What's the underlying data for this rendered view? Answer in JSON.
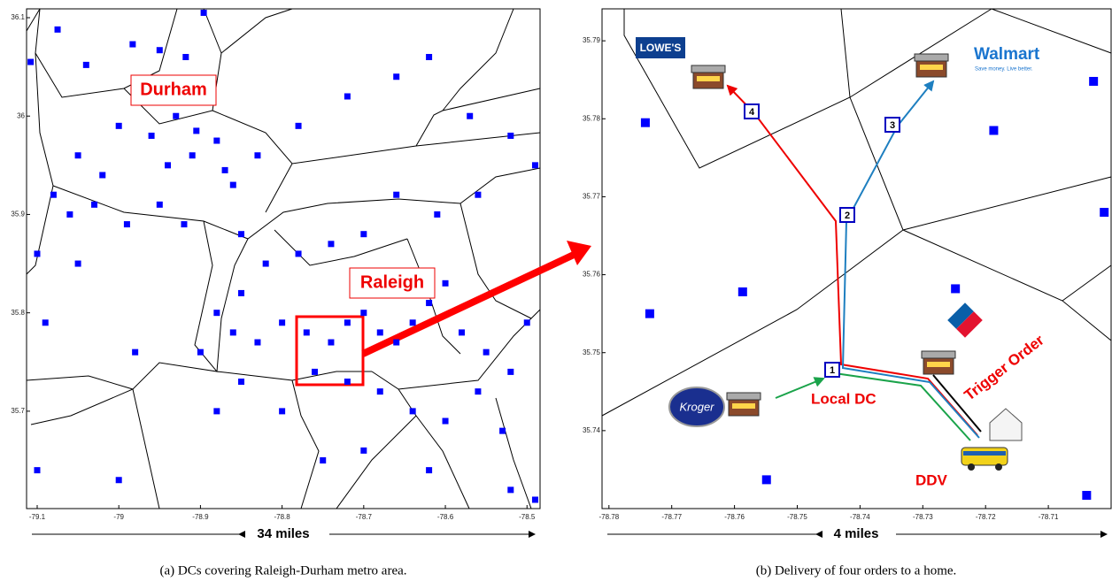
{
  "panels": [
    {
      "type": "scatter",
      "color": "#0000ff",
      "xlim": [
        -79.113,
        -78.484
      ],
      "ylim": [
        35.601,
        36.109
      ],
      "xticks": [
        -79.1,
        -79,
        -78.9,
        -78.8,
        -78.7,
        -78.6,
        -78.5
      ],
      "yticks": [
        35.7,
        35.8,
        35.9,
        36,
        36.1
      ],
      "x": [
        -79.108,
        -79.075,
        -79.04,
        -78.983,
        -78.95,
        -78.896,
        -78.918,
        -79.0,
        -78.96,
        -78.93,
        -78.905,
        -78.88,
        -78.94,
        -78.91,
        -78.87,
        -79.05,
        -79.02,
        -79.08,
        -79.06,
        -79.03,
        -79.1,
        -79.05,
        -78.99,
        -78.95,
        -78.92,
        -78.86,
        -78.83,
        -78.78,
        -78.72,
        -78.66,
        -78.62,
        -78.57,
        -78.52,
        -78.49,
        -78.56,
        -78.61,
        -78.66,
        -78.7,
        -78.74,
        -78.78,
        -78.82,
        -78.85,
        -78.88,
        -78.86,
        -78.83,
        -78.8,
        -78.77,
        -78.74,
        -78.72,
        -78.7,
        -78.68,
        -78.66,
        -78.64,
        -78.62,
        -78.6,
        -78.58,
        -78.55,
        -78.52,
        -78.5,
        -78.76,
        -78.72,
        -78.68,
        -78.64,
        -78.6,
        -78.56,
        -78.53,
        -78.7,
        -78.75,
        -78.8,
        -78.85,
        -78.88,
        -78.98,
        -79.1,
        -79.0,
        -78.52,
        -78.49,
        -78.62,
        -78.9,
        -79.09,
        -78.85
      ],
      "y": [
        36.055,
        36.088,
        36.052,
        36.073,
        36.067,
        36.105,
        36.06,
        35.99,
        35.98,
        36.0,
        35.985,
        35.975,
        35.95,
        35.96,
        35.945,
        35.96,
        35.94,
        35.92,
        35.9,
        35.91,
        35.86,
        35.85,
        35.89,
        35.91,
        35.89,
        35.93,
        35.96,
        35.99,
        36.02,
        36.04,
        36.06,
        36.0,
        35.98,
        35.95,
        35.92,
        35.9,
        35.92,
        35.88,
        35.87,
        35.86,
        35.85,
        35.82,
        35.8,
        35.78,
        35.77,
        35.79,
        35.78,
        35.77,
        35.79,
        35.8,
        35.78,
        35.77,
        35.79,
        35.81,
        35.83,
        35.78,
        35.76,
        35.74,
        35.79,
        35.74,
        35.73,
        35.72,
        35.7,
        35.69,
        35.72,
        35.68,
        35.66,
        35.65,
        35.7,
        35.73,
        35.7,
        35.76,
        35.64,
        35.63,
        35.62,
        35.61,
        35.64,
        35.76,
        35.79,
        35.88
      ],
      "annotations": [
        "Durham",
        "Raleigh"
      ],
      "scale": "34 miles",
      "caption": "(a) DCs covering Raleigh-Durham metro area."
    },
    {
      "type": "scatter",
      "color": "#0000ff",
      "xlim": [
        -78.7811,
        -78.7
      ],
      "ylim": [
        35.73,
        35.7941
      ],
      "xticks": [
        -78.78,
        -78.77,
        -78.76,
        -78.75,
        -78.74,
        -78.73,
        -78.72,
        -78.71
      ],
      "yticks": [
        35.74,
        35.75,
        35.76,
        35.77,
        35.78,
        35.79
      ],
      "x": [
        -78.7742,
        -78.7735,
        -78.7587,
        -78.7549,
        -78.7248,
        -78.7187,
        -78.7028,
        -78.7011,
        -78.7039
      ],
      "y": [
        35.7795,
        35.755,
        35.7578,
        35.7337,
        35.7582,
        35.7785,
        35.7848,
        35.768,
        35.7317
      ],
      "route_labels": [
        "1",
        "2",
        "3",
        "4"
      ],
      "annotations": [
        "Local DC",
        "Trigger Order",
        "DDV"
      ],
      "logos": [
        "LOWE'S",
        "Walmart",
        "Save money. Live better.",
        "Kroger"
      ],
      "scale": "4 miles",
      "caption": "(b) Delivery of four orders to a home."
    }
  ]
}
